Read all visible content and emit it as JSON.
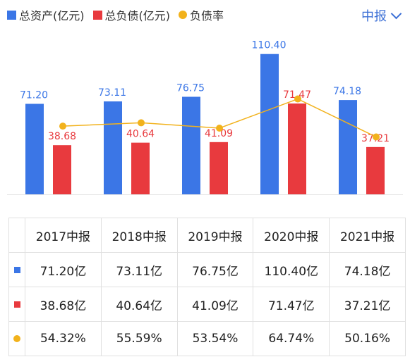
{
  "legend": {
    "assets_label": "总资产(亿元)",
    "liabilities_label": "总负债(亿元)",
    "ratio_label": "负债率"
  },
  "period_selector": {
    "label": "中报"
  },
  "colors": {
    "assets": "#3b76e6",
    "liabilities": "#e83a3e",
    "ratio": "#f2b21c",
    "accent": "#3b6fd6"
  },
  "chart_data": {
    "type": "bar",
    "categories": [
      "2017中报",
      "2018中报",
      "2019中报",
      "2020中报",
      "2021中报"
    ],
    "series": [
      {
        "name": "总资产(亿元)",
        "type": "bar",
        "values": [
          71.2,
          73.11,
          76.75,
          110.4,
          74.18
        ],
        "labels": [
          "71.20",
          "73.11",
          "76.75",
          "110.40",
          "74.18"
        ]
      },
      {
        "name": "总负债(亿元)",
        "type": "bar",
        "values": [
          38.68,
          40.64,
          41.09,
          71.47,
          37.21
        ],
        "labels": [
          "38.68",
          "40.64",
          "41.09",
          "71.47",
          "37.21"
        ]
      },
      {
        "name": "负债率",
        "type": "line",
        "values": [
          54.32,
          55.59,
          53.54,
          64.74,
          50.16
        ]
      }
    ],
    "grid": false,
    "legend_position": "top-left"
  },
  "table": {
    "headers": [
      "2017中报",
      "2018中报",
      "2019中报",
      "2020中报",
      "2021中报"
    ],
    "rows": [
      {
        "marker": "square-blue",
        "cells": [
          "71.20亿",
          "73.11亿",
          "76.75亿",
          "110.40亿",
          "74.18亿"
        ]
      },
      {
        "marker": "square-red",
        "cells": [
          "38.68亿",
          "40.64亿",
          "41.09亿",
          "71.47亿",
          "37.21亿"
        ]
      },
      {
        "marker": "dot-yellow",
        "cells": [
          "54.32%",
          "55.59%",
          "53.54%",
          "64.74%",
          "50.16%"
        ]
      }
    ]
  }
}
